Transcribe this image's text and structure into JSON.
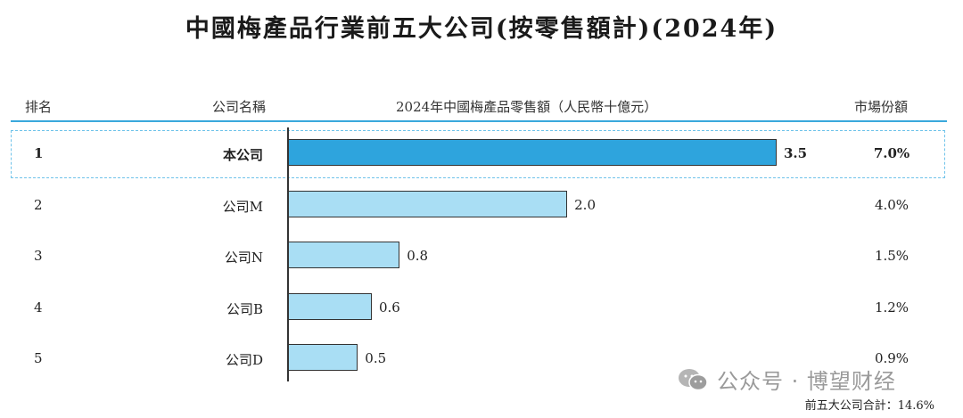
{
  "header": {
    "title": "中國梅產品行業前五大公司(按零售額計)(2024年)"
  },
  "columns": {
    "rank": "排名",
    "company": "公司名稱",
    "sales": "2024年中國梅產品零售額（人民幣十億元）",
    "share": "市場份額"
  },
  "chart_data": {
    "type": "bar",
    "orientation": "horizontal",
    "title": "中國梅產品行業前五大公司(按零售額計)(2024年)",
    "xlabel": "2024年中國梅產品零售額（人民幣十億元）",
    "categories": [
      "本公司",
      "公司M",
      "公司N",
      "公司B",
      "公司D"
    ],
    "values": [
      3.5,
      2.0,
      0.8,
      0.6,
      0.5
    ],
    "xlim": [
      0,
      3.5
    ],
    "grid": false,
    "highlight_index": 0,
    "colors": {
      "highlight": "#2ea4dd",
      "normal": "#a9def4"
    }
  },
  "rows": [
    {
      "rank": "1",
      "company": "本公司",
      "value": "3.5",
      "share": "7.0%"
    },
    {
      "rank": "2",
      "company": "公司M",
      "value": "2.0",
      "share": "4.0%"
    },
    {
      "rank": "3",
      "company": "公司N",
      "value": "0.8",
      "share": "1.5%"
    },
    {
      "rank": "4",
      "company": "公司B",
      "value": "0.6",
      "share": "1.2%"
    },
    {
      "rank": "5",
      "company": "公司D",
      "value": "0.5",
      "share": "0.9%"
    }
  ],
  "footer": {
    "total": "前五大公司合計：14.6%"
  },
  "watermark": {
    "text": "公众号 · 博望财经"
  }
}
